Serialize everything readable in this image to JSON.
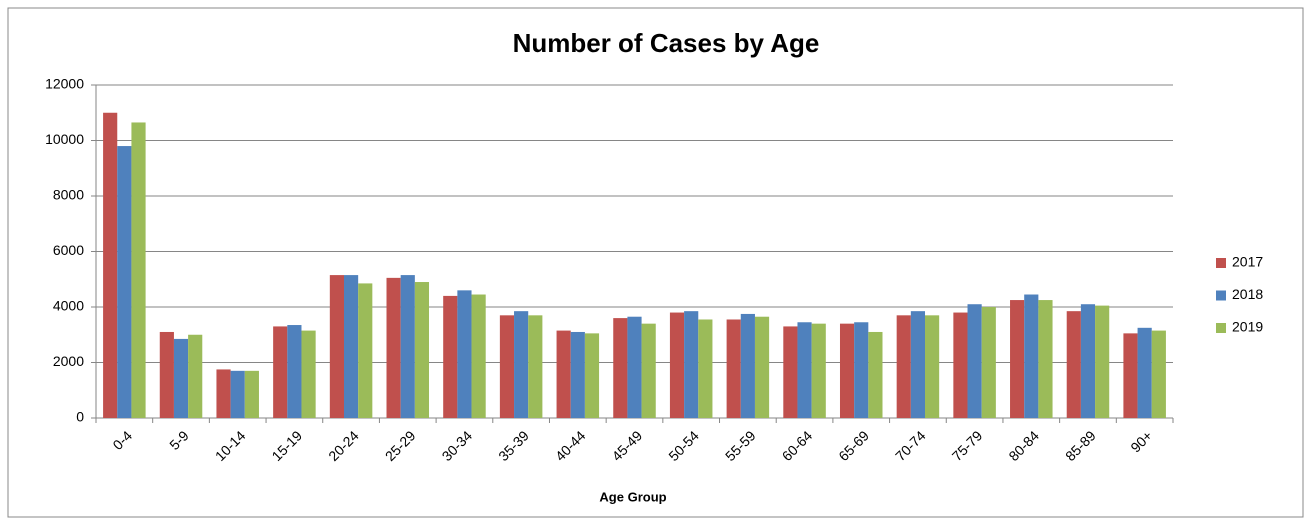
{
  "chart_data": {
    "type": "bar",
    "title": "Number of Cases by Age",
    "x_label": "Age Group",
    "categories": [
      "0-4",
      "5-9",
      "10-14",
      "15-19",
      "20-24",
      "25-29",
      "30-34",
      "35-39",
      "40-44",
      "45-49",
      "50-54",
      "55-59",
      "60-64",
      "65-69",
      "70-74",
      "75-79",
      "80-84",
      "85-89",
      "90+"
    ],
    "series": [
      {
        "name": "2017",
        "color": "#c0504d",
        "values": [
          11000,
          3100,
          1750,
          3300,
          5150,
          5050,
          4400,
          3700,
          3150,
          3600,
          3800,
          3550,
          3300,
          3400,
          3700,
          3800,
          4250,
          3850,
          3050
        ]
      },
      {
        "name": "2018",
        "color": "#4f81bd",
        "values": [
          9800,
          2850,
          1700,
          3350,
          5150,
          5150,
          4600,
          3850,
          3100,
          3650,
          3850,
          3750,
          3450,
          3450,
          3850,
          4100,
          4450,
          4100,
          3250
        ]
      },
      {
        "name": "2019",
        "color": "#9bbb59",
        "values": [
          10650,
          3000,
          1700,
          3150,
          4850,
          4900,
          4450,
          3700,
          3050,
          3400,
          3550,
          3650,
          3400,
          3100,
          3700,
          4000,
          4250,
          4050,
          3150
        ]
      }
    ],
    "ylim": [
      0,
      12000
    ],
    "yticks": [
      0,
      2000,
      4000,
      6000,
      8000,
      10000,
      12000
    ],
    "grid": true,
    "legend": "right"
  }
}
